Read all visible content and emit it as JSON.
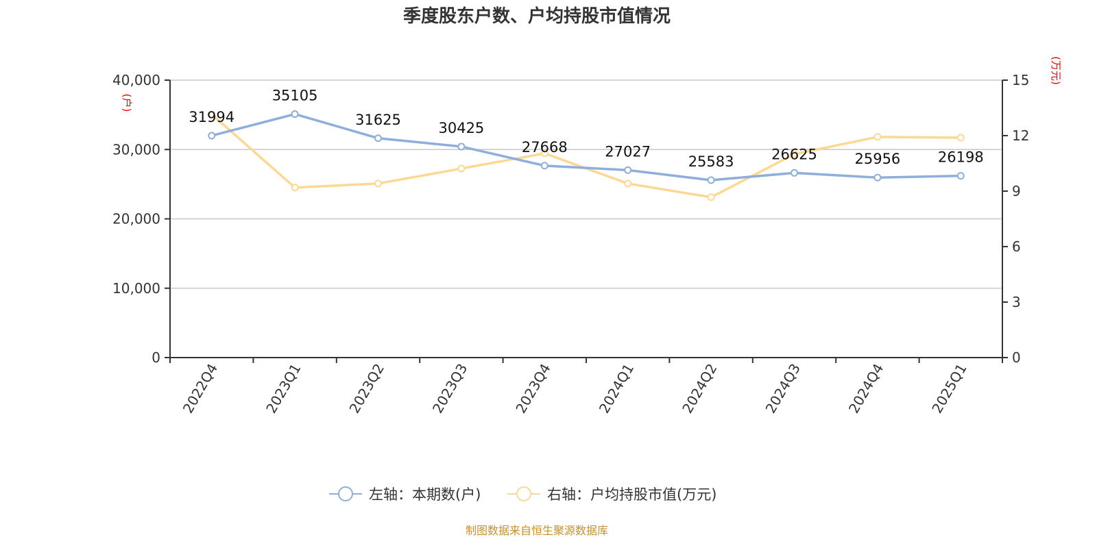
{
  "chart_data": {
    "type": "line",
    "title": "季度股东户数、户均持股市值情况",
    "categories": [
      "2022Q4",
      "2023Q1",
      "2023Q2",
      "2023Q3",
      "2023Q4",
      "2024Q1",
      "2024Q2",
      "2024Q3",
      "2024Q4",
      "2025Q1"
    ],
    "left_axis": {
      "unit": "(户)",
      "range": [
        0,
        40000
      ],
      "ticks": [
        0,
        10000,
        20000,
        30000,
        40000
      ],
      "tick_labels": [
        "0",
        "10,000",
        "20,000",
        "30,000",
        "40,000"
      ]
    },
    "right_axis": {
      "unit": "(万元)",
      "range": [
        0,
        15
      ],
      "ticks": [
        0,
        3,
        6,
        9,
        12,
        15
      ],
      "tick_labels": [
        "0",
        "3",
        "6",
        "9",
        "12",
        "15"
      ]
    },
    "grid": true,
    "legend_position": "bottom",
    "series": [
      {
        "name": "左轴：本期数(户)",
        "axis": "left",
        "color": "#8eaedc",
        "values": [
          31994,
          35105,
          31625,
          30425,
          27668,
          27027,
          25583,
          26625,
          25956,
          26198
        ],
        "labels": [
          "31994",
          "35105",
          "31625",
          "30425",
          "27668",
          "27027",
          "25583",
          "26625",
          "25956",
          "26198"
        ]
      },
      {
        "name": "右轴：户均持股市值(万元)",
        "axis": "right",
        "color": "#fdd893",
        "values": [
          13.15,
          9.19,
          9.41,
          10.22,
          11.04,
          9.41,
          8.67,
          11.0,
          11.93,
          11.89
        ]
      }
    ],
    "source": "制图数据来自恒生聚源数据库"
  }
}
